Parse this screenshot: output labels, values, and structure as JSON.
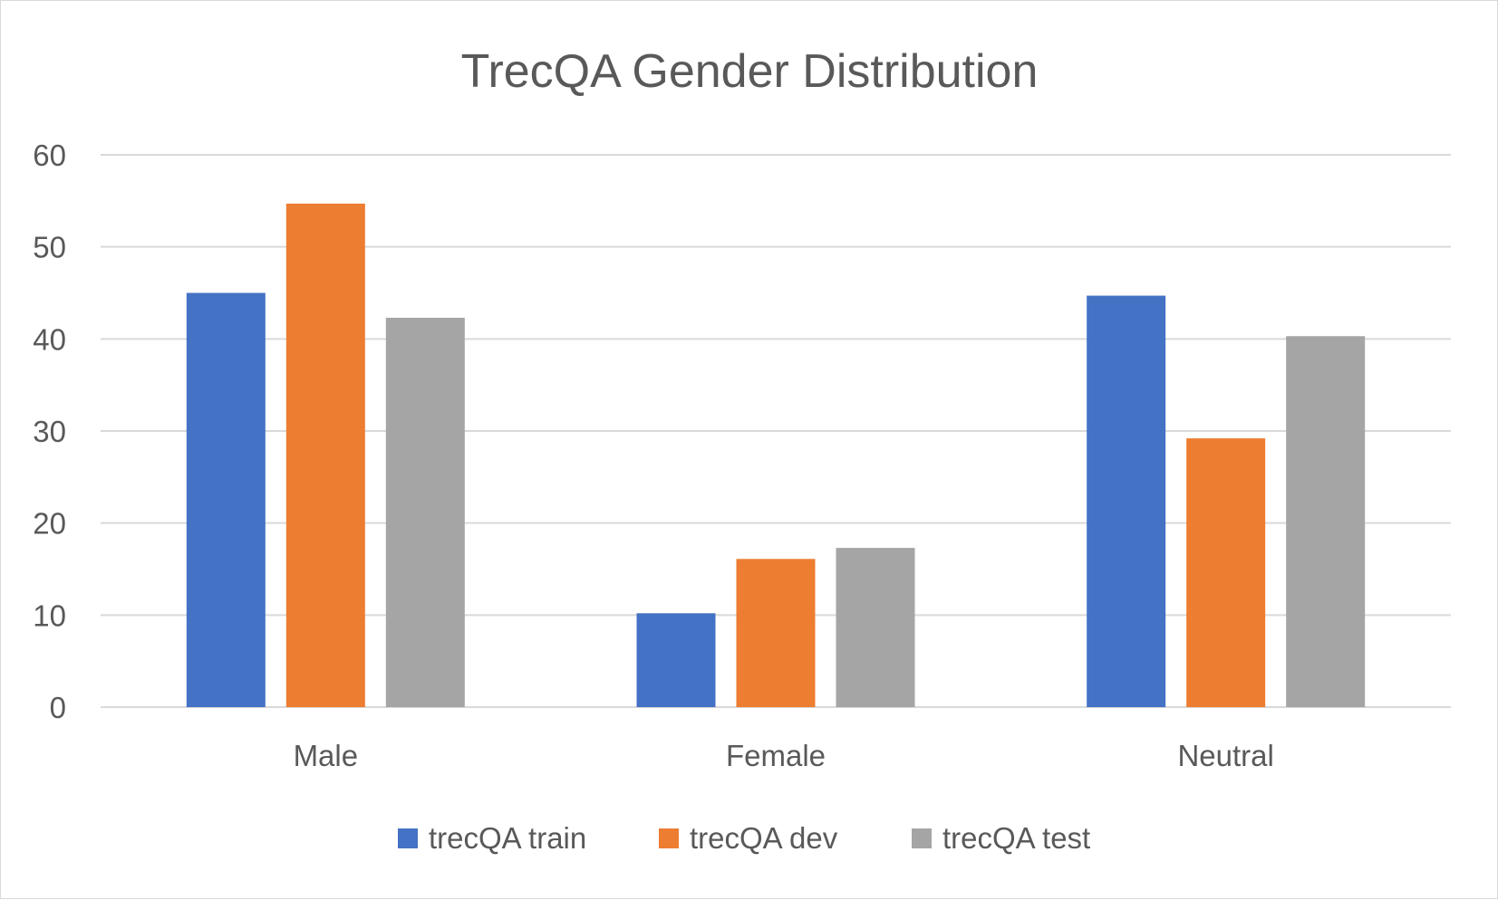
{
  "chart_data": {
    "type": "bar",
    "title": "TrecQA Gender Distribution",
    "xlabel": "",
    "ylabel": "",
    "categories": [
      "Male",
      "Female",
      "Neutral"
    ],
    "series": [
      {
        "name": "trecQA train",
        "color": "#4472C4",
        "values": [
          45.0,
          10.2,
          44.7
        ]
      },
      {
        "name": "trecQA dev",
        "color": "#ED7D31",
        "values": [
          54.7,
          16.1,
          29.2
        ]
      },
      {
        "name": "trecQA test",
        "color": "#A5A5A5",
        "values": [
          42.3,
          17.3,
          40.3
        ]
      }
    ],
    "ylim": [
      0,
      60
    ],
    "yticks": [
      0,
      10,
      20,
      30,
      40,
      50,
      60
    ],
    "grid": true,
    "legend_position": "bottom",
    "gridline_color": "#d9d9d9",
    "text_color": "#595959"
  }
}
